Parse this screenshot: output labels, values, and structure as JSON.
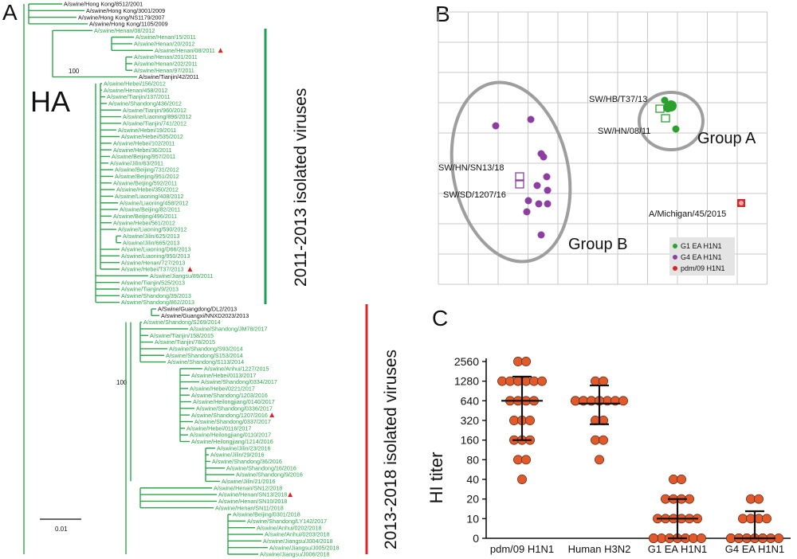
{
  "panels": {
    "A": {
      "letter": "A",
      "ha_label": "HA",
      "bootstrap_labels": [
        "100",
        "100"
      ],
      "group1_label": "2011-2013 isolated viruses",
      "group2_label": "2013-2018 isolated viruses",
      "group1_color": "#1aa34a",
      "group2_color": "#e0242a",
      "tree_color": "#2aa84a",
      "leaf_green": "#2aa84a",
      "marker_color": "#d62728",
      "scale_label": "0.01",
      "leaves": [
        {
          "label": "A/swine/Hong Kong/8512/2001",
          "c": "k"
        },
        {
          "label": "A/swine/Hong Kong/3001/2009",
          "c": "k"
        },
        {
          "label": "A/swine/Hong Kong/NS1179/2007",
          "c": "k"
        },
        {
          "label": "A/swine/Hong Kong/1105/2009",
          "c": "k"
        },
        {
          "label": "A/swine/Henan/08/2012",
          "c": "g"
        },
        {
          "label": "A/swine/Henan/15/2011",
          "c": "g"
        },
        {
          "label": "A/swine/Henan/20/2012",
          "c": "g"
        },
        {
          "label": "A/swine/Henan/08/2011",
          "c": "g",
          "mark": true
        },
        {
          "label": "A/swine/Henan/201/2011",
          "c": "g"
        },
        {
          "label": "A/swine/Henan/202/2011",
          "c": "g"
        },
        {
          "label": "A/swine/Henan/97/2011",
          "c": "g"
        },
        {
          "label": "A/swine/Tianjin/42/2011",
          "c": "k"
        },
        {
          "label": "A/swine/Hebei/156/2012",
          "c": "g"
        },
        {
          "label": "A/swine/Henan/458/2012",
          "c": "g"
        },
        {
          "label": "A/swine/Tianjin/137/2011",
          "c": "g"
        },
        {
          "label": "A/swine/Shandong/436/2012",
          "c": "g"
        },
        {
          "label": "A/swine/Tianjin/960/2012",
          "c": "g"
        },
        {
          "label": "A/swine/Liaoning/896/2012",
          "c": "g"
        },
        {
          "label": "A/swine/Tianjin/741/2012",
          "c": "g"
        },
        {
          "label": "A/swine/Hebei/19/2011",
          "c": "g"
        },
        {
          "label": "A/swine/Hebei/535/2012",
          "c": "g"
        },
        {
          "label": "A/swine/Hebei/102/2011",
          "c": "g"
        },
        {
          "label": "A/swine/Hebei/36/2011",
          "c": "g"
        },
        {
          "label": "A/swine/Beijing/957/2011",
          "c": "g"
        },
        {
          "label": "A/swine/Jilin/63/2011",
          "c": "g"
        },
        {
          "label": "A/swine/Beijing/731/2012",
          "c": "g"
        },
        {
          "label": "A/swine/Beijing/951/2012",
          "c": "g"
        },
        {
          "label": "A/swine/Beijing/592/2011",
          "c": "g"
        },
        {
          "label": "A/swine/Hebei/350/2012",
          "c": "g"
        },
        {
          "label": "A/swine/Liaoning/408/2012",
          "c": "g"
        },
        {
          "label": "A/swine/Liaoning/458/2012",
          "c": "g"
        },
        {
          "label": "A/swine/Beijing/82/2011",
          "c": "g"
        },
        {
          "label": "A/swine/Beijing/496/2011",
          "c": "g"
        },
        {
          "label": "A/swine/Hebei/561/2012",
          "c": "g"
        },
        {
          "label": "A/swine/Liaoning/590/2012",
          "c": "g"
        },
        {
          "label": "A/swine/Jilin/625/2013",
          "c": "g"
        },
        {
          "label": "A/swine/Jilin/665/2013",
          "c": "g"
        },
        {
          "label": "A/swine/Liaoning/D66/2013",
          "c": "g"
        },
        {
          "label": "A/swine/Liaoning/950/2013",
          "c": "g"
        },
        {
          "label": "A/swine/Henan/727/2013",
          "c": "g"
        },
        {
          "label": "A/swine/Hebei/T37/2013",
          "c": "g",
          "mark": true
        },
        {
          "label": "A/swine/Jiangsu/89/2011",
          "c": "g"
        },
        {
          "label": "A/swine/Tianjin/525/2013",
          "c": "g"
        },
        {
          "label": "A/swine/Tianjin/9/2013",
          "c": "g"
        },
        {
          "label": "A/swine/Shandong/39/2013",
          "c": "g"
        },
        {
          "label": "A/swine/Shandong/862/2013",
          "c": "g"
        },
        {
          "label": "A/Swine/Guangdong/DL2/2013",
          "c": "k"
        },
        {
          "label": "A/swine/Guangxi/NNXD2023/2013",
          "c": "k"
        },
        {
          "label": "A/swine/Shandong/S269/2014",
          "c": "g"
        },
        {
          "label": "A/swine/Shandong/JM78/2017",
          "c": "g"
        },
        {
          "label": "A/swine/Tianjin/158/2015",
          "c": "g"
        },
        {
          "label": "A/swine/Tianjin/78/2015",
          "c": "g"
        },
        {
          "label": "A/swine/Shandong/S93/2014",
          "c": "g"
        },
        {
          "label": "A/swine/Shandong/S153/2014",
          "c": "g"
        },
        {
          "label": "A/swine/Shandong/S113/2014",
          "c": "g"
        },
        {
          "label": "A/swine/Anhui/1227/2015",
          "c": "g"
        },
        {
          "label": "A/swine/Hebei/0113/2017",
          "c": "g"
        },
        {
          "label": "A/swine/Shandong/0334/2017",
          "c": "g"
        },
        {
          "label": "A/swine/Hebei/0221/2017",
          "c": "g"
        },
        {
          "label": "A/swine/Shandong/1203/2016",
          "c": "g"
        },
        {
          "label": "A/swine/Heilongjiang/0140/2017",
          "c": "g"
        },
        {
          "label": "A/swine/Shandong/0336/2017",
          "c": "g"
        },
        {
          "label": "A/swine/Shandong/1207/2016",
          "c": "g",
          "mark": true
        },
        {
          "label": "A/swine/Shandong/0337/2017",
          "c": "g"
        },
        {
          "label": "A/swine/Hebei/0116/2017",
          "c": "g"
        },
        {
          "label": "A/swine/Heilongjiang/0110/2017",
          "c": "g"
        },
        {
          "label": "A/swine/Heilongjiang/1214/2016",
          "c": "g"
        },
        {
          "label": "A/swine/Jilin/23/2016",
          "c": "g"
        },
        {
          "label": "A/swine/Jilin/29/2016",
          "c": "g"
        },
        {
          "label": "A/swine/Shandong/36/2016",
          "c": "g"
        },
        {
          "label": "A/swine/Shandong/16/2016",
          "c": "g"
        },
        {
          "label": "A/swine/Shandong/9/2016",
          "c": "g"
        },
        {
          "label": "A/swine/Jilin/21/2016",
          "c": "g"
        },
        {
          "label": "A/swine/Henan/SN12/2018",
          "c": "g"
        },
        {
          "label": "A/swine/Henan/SN13/2018",
          "c": "g",
          "mark": true
        },
        {
          "label": "A/swine/Henan/SN10/2018",
          "c": "g"
        },
        {
          "label": "A/swine/Henan/SN11/2018",
          "c": "g"
        },
        {
          "label": "A/swine/Beijing/0301/2018",
          "c": "g"
        },
        {
          "label": "A/swine/Shandong/LY142/2017",
          "c": "g"
        },
        {
          "label": "A/swine/Anhui/0202/2018",
          "c": "g"
        },
        {
          "label": "A/swine/Anhui/0203/2018",
          "c": "g"
        },
        {
          "label": "A/swine/Jiangsu/J004/2018",
          "c": "g"
        },
        {
          "label": "A/swine/Jiangsu/J005/2018",
          "c": "g"
        },
        {
          "label": "A/swine/Jiangsu/J006/2018",
          "c": "g"
        }
      ]
    },
    "B": {
      "letter": "B",
      "group_a_label": "Group A",
      "group_b_label": "Group B",
      "annotations": [
        "SW/HB/T37/13",
        "SW/HN/08/11",
        "SW/HN/SN13/18",
        "SW/SD/1207/16",
        "A/Michigan/45/2015"
      ],
      "legend": [
        {
          "label": "G1 EA H1N1",
          "color": "#2ca02c"
        },
        {
          "label": "G4 EA H1N1",
          "color": "#8c3fa0"
        },
        {
          "label": "pdm/09 H1N1",
          "color": "#d62728"
        }
      ]
    },
    "C": {
      "letter": "C",
      "dot_color": "#e2592b"
    }
  },
  "chart_data": {
    "type": "scatter",
    "title": "",
    "xlabel": "",
    "ylabel": "HI titer",
    "y_scale": "log2 (0 plotted at baseline)",
    "y_ticks": [
      "0",
      "10",
      "20",
      "40",
      "80",
      "160",
      "320",
      "640",
      "1280",
      "2560"
    ],
    "categories": [
      "pdm/09 H1N1",
      "Human H3N2",
      "G1 EA H1N1",
      "G4 EA H1N1"
    ],
    "series": [
      {
        "values": [
          2560,
          2560,
          1280,
          1280,
          1280,
          1280,
          1280,
          1280,
          640,
          640,
          640,
          640,
          320,
          320,
          320,
          160,
          160,
          160,
          80,
          80,
          40
        ],
        "mean": 640,
        "sd_range": [
          160,
          1500
        ]
      },
      {
        "values": [
          1280,
          1280,
          640,
          640,
          640,
          640,
          640,
          640,
          640,
          640,
          640,
          640,
          640,
          320,
          320,
          160,
          160,
          80
        ],
        "mean": 580,
        "sd_range": [
          280,
          1100
        ]
      },
      {
        "values": [
          40,
          40,
          20,
          20,
          20,
          20,
          10,
          10,
          10,
          10,
          10,
          10,
          0,
          0,
          0,
          0,
          0,
          0,
          0,
          0
        ],
        "mean": 10,
        "sd_range": [
          0,
          20
        ]
      },
      {
        "values": [
          20,
          20,
          10,
          10,
          10,
          10,
          0,
          0,
          0,
          0,
          0,
          0,
          0,
          0,
          0,
          0,
          0,
          0
        ],
        "mean": 5,
        "sd_range": [
          0,
          13
        ]
      }
    ]
  }
}
